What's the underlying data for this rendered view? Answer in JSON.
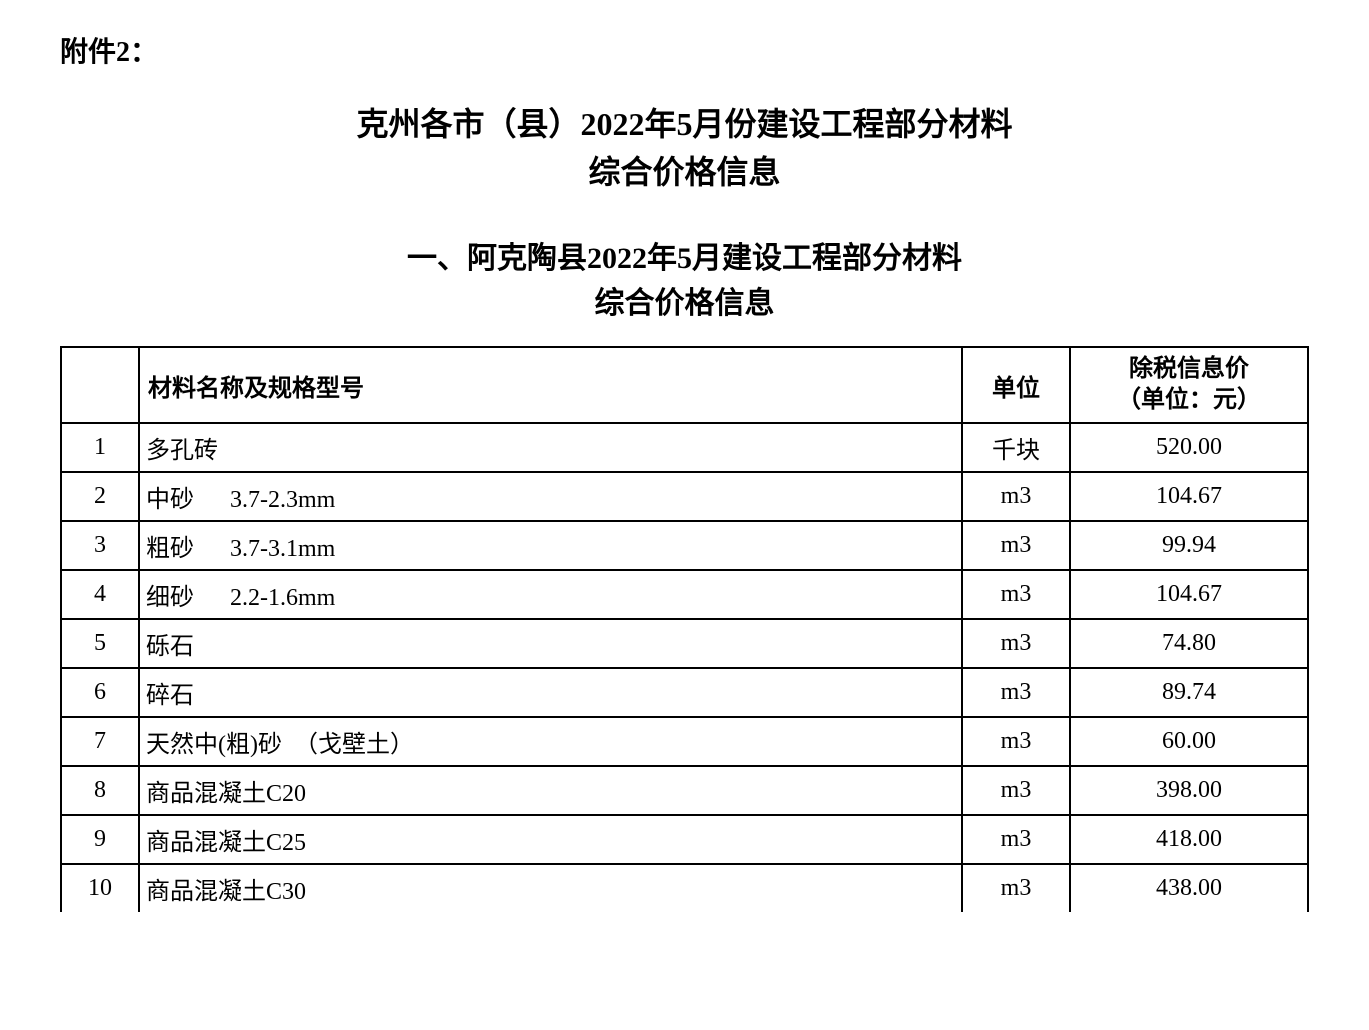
{
  "attachment_label": "附件2：",
  "main_title_line1": "克州各市（县）2022年5月份建设工程部分材料",
  "main_title_line2": "综合价格信息",
  "section_title_line1": "一、阿克陶县2022年5月建设工程部分材料",
  "section_title_line2": "综合价格信息",
  "table": {
    "columns": {
      "num": "",
      "name": "材料名称及规格型号",
      "unit": "单位",
      "price_line1": "除税信息价",
      "price_line2": "（单位：元）"
    },
    "rows": [
      {
        "num": "1",
        "name": "多孔砖",
        "unit": "千块",
        "price": "520.00"
      },
      {
        "num": "2",
        "name": "中砂      3.7-2.3mm",
        "unit": "m3",
        "price": "104.67"
      },
      {
        "num": "3",
        "name": "粗砂      3.7-3.1mm",
        "unit": "m3",
        "price": "99.94"
      },
      {
        "num": "4",
        "name": "细砂      2.2-1.6mm",
        "unit": "m3",
        "price": "104.67"
      },
      {
        "num": "5",
        "name": "砾石",
        "unit": "m3",
        "price": "74.80"
      },
      {
        "num": "6",
        "name": "碎石",
        "unit": "m3",
        "price": "89.74"
      },
      {
        "num": "7",
        "name": "天然中(粗)砂  （戈壁土）",
        "unit": "m3",
        "price": "60.00"
      },
      {
        "num": "8",
        "name": "商品混凝土C20",
        "unit": "m3",
        "price": "398.00"
      },
      {
        "num": "9",
        "name": "商品混凝土C25",
        "unit": "m3",
        "price": "418.00"
      },
      {
        "num": "10",
        "name": "商品混凝土C30",
        "unit": "m3",
        "price": "438.00"
      }
    ],
    "col_widths": {
      "num": 60,
      "name": "auto",
      "unit": 90,
      "price": 220
    },
    "border_color": "#000000",
    "font_size": 24
  },
  "styling": {
    "background_color": "#ffffff",
    "text_color": "#000000",
    "title_font_size": 32,
    "section_font_size": 30,
    "label_font_size": 28
  }
}
